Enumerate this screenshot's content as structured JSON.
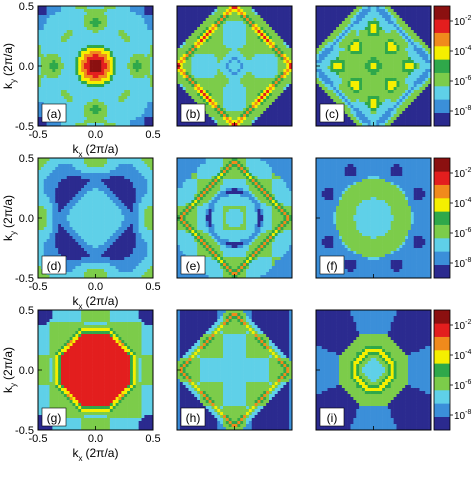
{
  "colors": {
    "c1": "#2b2a8f",
    "c2": "#3b8fd9",
    "c3": "#5fd0e8",
    "c4": "#7ccc4a",
    "c5": "#2fa84a",
    "c6": "#f5ef00",
    "c7": "#f08a1c",
    "c8": "#e31e1e",
    "c9": "#8b1010"
  },
  "chart_data": {
    "type": "heatmap",
    "layout": "3x3 grid of contour maps with a colorbar per row",
    "xlabel": "k",
    "xlabel_sub": "x",
    "xunit": "(2π/a)",
    "ylabel": "k",
    "ylabel_sub": "y",
    "yunit": "(2π/a)",
    "xlim": [
      -0.5,
      0.5
    ],
    "ylim": [
      -0.5,
      0.5
    ],
    "xticks": [
      "-0.5",
      "0.0",
      "0.5"
    ],
    "yticks": [
      "-0.5",
      "0.0",
      "0.5"
    ],
    "panels": [
      "(a)",
      "(b)",
      "(c)",
      "(d)",
      "(e)",
      "(f)",
      "(g)",
      "(h)",
      "(i)"
    ],
    "colorbar": {
      "scale": "log",
      "range": [
        1e-09,
        0.1
      ],
      "labels": [
        {
          "base": "10",
          "exp": "-2",
          "value": 0.01
        },
        {
          "base": "10",
          "exp": "-4",
          "value": 0.0001
        },
        {
          "base": "10",
          "exp": "-6",
          "value": 1e-06
        },
        {
          "base": "10",
          "exp": "-8",
          "value": 1e-08
        }
      ],
      "levels": 9
    }
  }
}
